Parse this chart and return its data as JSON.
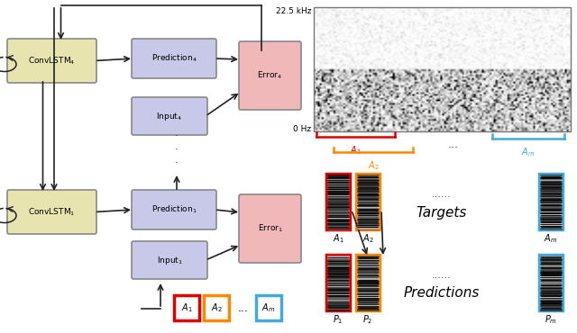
{
  "bg_color": "#ffffff",
  "convlstm_color": "#e8e4b0",
  "prediction_color": "#c8c8e8",
  "input_color": "#c8c8e8",
  "error_color": "#f0b8b8",
  "box_edge": "#888888",
  "arrow_color": "#222222",
  "red_color": "#dd0000",
  "orange_color": "#ff8800",
  "blue_color": "#44aadd",
  "freq_high": "22.5 kHz",
  "freq_low": "0 Hz",
  "convlstm4_label": "ConvLSTM$_4$",
  "convlstm1_label": "ConvLSTM$_1$",
  "pred4_label": "Prediction$_4$",
  "pred1_label": "Prediction$_1$",
  "input4_label": "Input$_4$",
  "input1_label": "Input$_1$",
  "error4_label": "Error$_4$",
  "error1_label": "Error$_1$",
  "targets_label": "Targets",
  "predictions_label": "Predictions"
}
